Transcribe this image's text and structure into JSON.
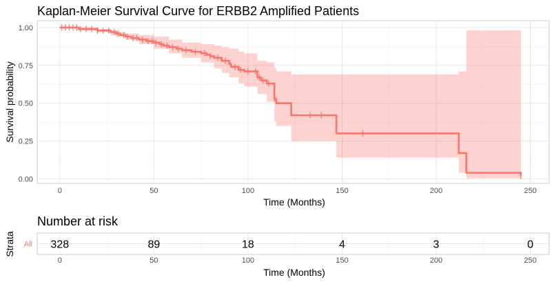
{
  "chart_data": [
    {
      "type": "line",
      "subtype": "kaplan-meier-step",
      "title": "Kaplan-Meier Survival Curve for ERBB2 Amplified Patients",
      "xlabel": "Time (Months)",
      "ylabel": "Survival probability",
      "xlim": [
        -12,
        260
      ],
      "ylim": [
        -0.03,
        1.045
      ],
      "xticks": [
        0,
        50,
        100,
        150,
        200,
        250
      ],
      "yticks": [
        0,
        0.25,
        0.5,
        0.75,
        1
      ],
      "ytick_labels": [
        "0.00",
        "0.25",
        "0.50",
        "0.75",
        "1.00"
      ],
      "grid": true,
      "legend": "none",
      "colors": {
        "curve": "#f8766d",
        "band": "#f8766d"
      },
      "series": [
        {
          "values": [
            [
              0,
              1.0
            ],
            [
              10,
              0.99
            ],
            [
              20,
              0.98
            ],
            [
              27,
              0.97
            ],
            [
              30,
              0.96
            ],
            [
              32,
              0.95
            ],
            [
              35,
              0.94
            ],
            [
              38,
              0.93
            ],
            [
              42,
              0.92
            ],
            [
              46,
              0.91
            ],
            [
              50,
              0.9
            ],
            [
              53,
              0.89
            ],
            [
              55,
              0.88
            ],
            [
              58,
              0.87
            ],
            [
              62,
              0.86
            ],
            [
              65,
              0.85
            ],
            [
              70,
              0.84
            ],
            [
              75,
              0.83
            ],
            [
              78,
              0.82
            ],
            [
              80,
              0.81
            ],
            [
              82,
              0.8
            ],
            [
              86,
              0.78
            ],
            [
              90,
              0.76
            ],
            [
              91,
              0.74
            ],
            [
              95,
              0.72
            ],
            [
              98,
              0.71
            ],
            [
              105,
              0.67
            ],
            [
              107,
              0.65
            ],
            [
              110,
              0.63
            ],
            [
              114,
              0.53
            ],
            [
              115,
              0.5
            ],
            [
              123,
              0.42
            ],
            [
              147,
              0.3
            ],
            [
              212,
              0.17
            ],
            [
              216,
              0.04
            ],
            [
              245,
              0.02
            ]
          ],
          "ci_lower": [
            [
              0,
              1.0
            ],
            [
              10,
              0.98
            ],
            [
              20,
              0.97
            ],
            [
              27,
              0.95
            ],
            [
              30,
              0.94
            ],
            [
              35,
              0.92
            ],
            [
              42,
              0.89
            ],
            [
              50,
              0.86
            ],
            [
              58,
              0.83
            ],
            [
              65,
              0.8
            ],
            [
              75,
              0.77
            ],
            [
              82,
              0.73
            ],
            [
              86,
              0.7
            ],
            [
              90,
              0.67
            ],
            [
              95,
              0.63
            ],
            [
              98,
              0.61
            ],
            [
              105,
              0.56
            ],
            [
              110,
              0.51
            ],
            [
              114,
              0.38
            ],
            [
              115,
              0.35
            ],
            [
              123,
              0.25
            ],
            [
              147,
              0.14
            ],
            [
              212,
              0.04
            ],
            [
              216,
              0.005
            ],
            [
              245,
              0.005
            ]
          ],
          "ci_upper": [
            [
              0,
              1.0
            ],
            [
              10,
              1.0
            ],
            [
              20,
              0.99
            ],
            [
              27,
              0.98
            ],
            [
              30,
              0.97
            ],
            [
              35,
              0.96
            ],
            [
              42,
              0.95
            ],
            [
              50,
              0.94
            ],
            [
              58,
              0.92
            ],
            [
              65,
              0.9
            ],
            [
              75,
              0.89
            ],
            [
              82,
              0.88
            ],
            [
              86,
              0.87
            ],
            [
              90,
              0.86
            ],
            [
              95,
              0.84
            ],
            [
              98,
              0.83
            ],
            [
              105,
              0.78
            ],
            [
              110,
              0.77
            ],
            [
              114,
              0.73
            ],
            [
              115,
              0.71
            ],
            [
              123,
              0.69
            ],
            [
              147,
              0.69
            ],
            [
              212,
              0.71
            ],
            [
              216,
              0.98
            ],
            [
              245,
              0.98
            ]
          ],
          "censored": [
            1,
            3,
            5,
            7,
            9,
            11,
            14,
            17,
            20,
            23,
            26,
            29,
            31,
            34,
            36,
            39,
            41,
            44,
            47,
            49,
            51,
            54,
            57,
            60,
            63,
            67,
            72,
            77,
            80,
            84,
            88,
            93,
            96,
            100,
            104,
            106,
            108,
            111,
            114,
            133,
            139,
            161,
            245
          ]
        }
      ]
    },
    {
      "type": "table",
      "title": "Number at risk",
      "ylabel": "Strata",
      "xlabel": "Time (Months)",
      "xticks": [
        0,
        50,
        100,
        150,
        200,
        250
      ],
      "strata": [
        "All"
      ],
      "times": [
        0,
        50,
        100,
        150,
        200,
        250
      ],
      "counts": [
        328,
        89,
        18,
        4,
        3,
        0
      ]
    }
  ]
}
